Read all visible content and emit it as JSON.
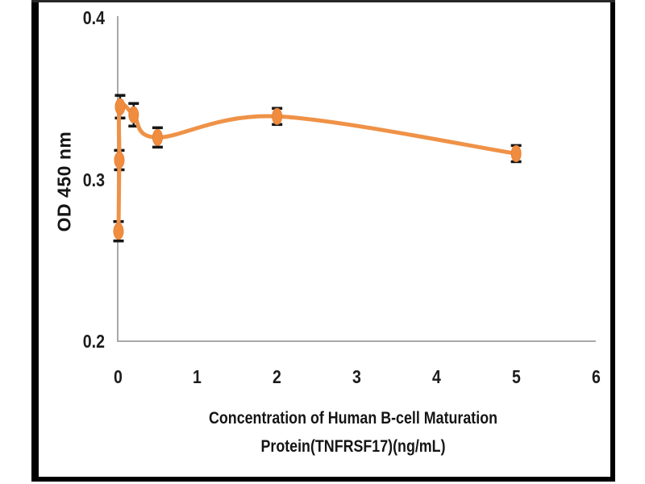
{
  "page": {
    "background": "#ffffff",
    "frame_color": "#000000"
  },
  "chart_data": {
    "type": "line",
    "title": "",
    "ylabel": "OD 450 nm",
    "xlabel_lines": [
      "Concentration of Human B-cell Maturation",
      "Protein(TNFRSF17)(ng/mL)"
    ],
    "xlim": [
      0,
      6
    ],
    "ylim": [
      0.2,
      0.4
    ],
    "grid": false,
    "legend": "none",
    "x_ticks": [
      {
        "value": 0,
        "label": "0"
      },
      {
        "value": 1,
        "label": "1"
      },
      {
        "value": 2,
        "label": "2"
      },
      {
        "value": 3,
        "label": "3"
      },
      {
        "value": 4,
        "label": "4"
      },
      {
        "value": 5,
        "label": "5"
      },
      {
        "value": 6,
        "label": "6"
      }
    ],
    "y_ticks": [
      {
        "value": 0.4,
        "label": "0.4"
      },
      {
        "value": 0.3,
        "label": "0.3"
      },
      {
        "value": 0.2,
        "label": "0.2"
      }
    ],
    "series": [
      {
        "name": "OD 450 nm",
        "x": [
          0.01,
          0.02,
          0.03,
          0.2,
          0.5,
          2,
          5
        ],
        "y": [
          0.268,
          0.312,
          0.345,
          0.34,
          0.326,
          0.339,
          0.316
        ],
        "yerr": [
          0.006,
          0.006,
          0.007,
          0.007,
          0.006,
          0.005,
          0.005
        ],
        "smooth": true,
        "marker": "ellipse"
      }
    ],
    "colors": {
      "line": "#EF9247",
      "marker_fill": "#F08C3E",
      "marker_stroke": "#E8823A",
      "error_bar": "#161616",
      "axis": "#A8A8A8",
      "tick_text": "#1c1c1c"
    }
  }
}
